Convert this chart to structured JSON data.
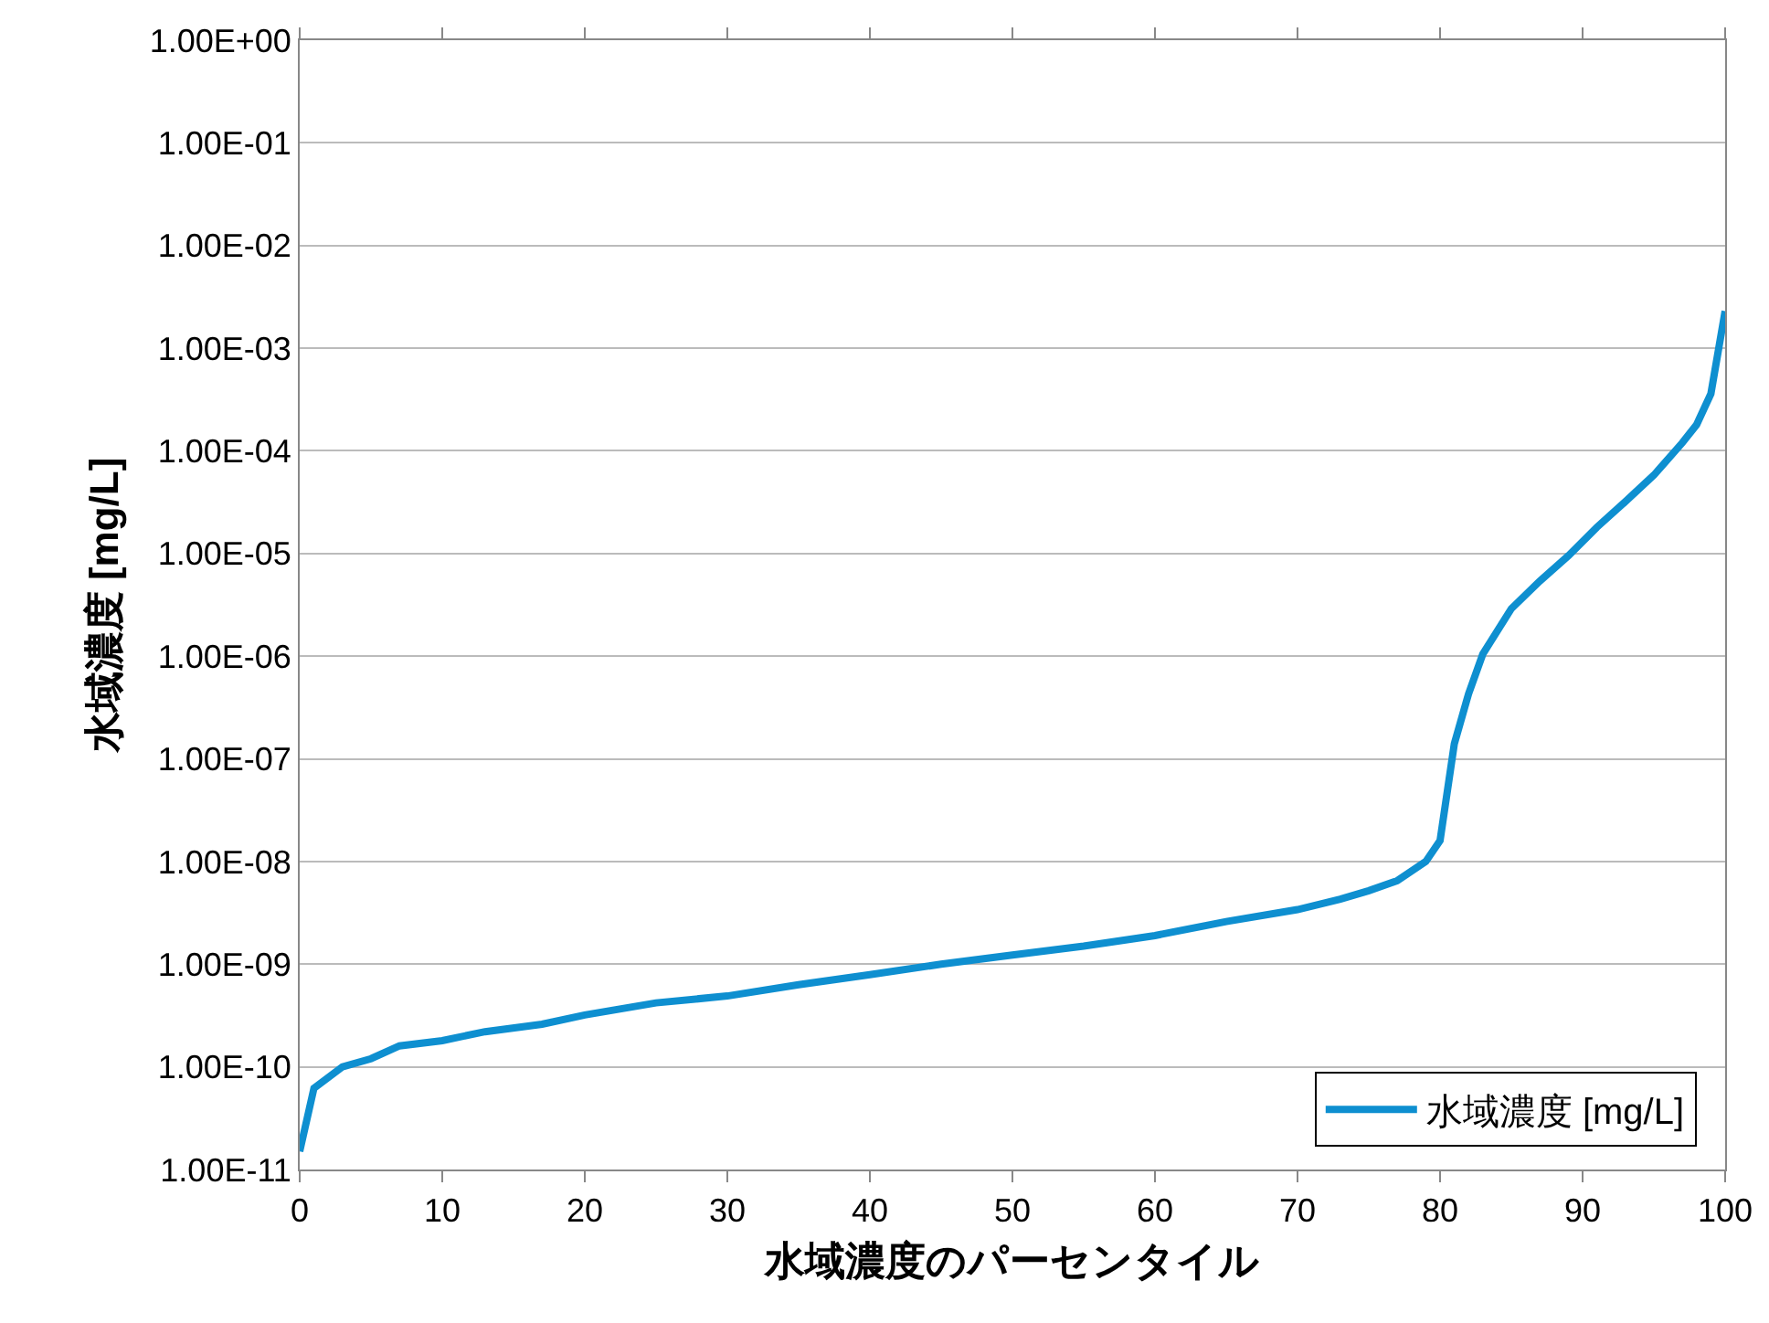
{
  "chart_data": {
    "type": "line",
    "xlabel": "水域濃度のパーセンタイル",
    "ylabel": "水域濃度 [mg/L]",
    "x": [
      0,
      1,
      3,
      5,
      7,
      10,
      13,
      17,
      20,
      25,
      30,
      35,
      40,
      45,
      50,
      55,
      60,
      65,
      70,
      73,
      75,
      77,
      79,
      80,
      81,
      82,
      83,
      85,
      87,
      89,
      91,
      93,
      95,
      97,
      98,
      99,
      100
    ],
    "series": [
      {
        "name": "水域濃度 [mg/L]",
        "color": "#0e8fd0",
        "values": [
          1.5e-11,
          6.2e-11,
          1e-10,
          1.2e-10,
          1.6e-10,
          1.8e-10,
          2.2e-10,
          2.6e-10,
          3.2e-10,
          4.2e-10,
          4.9e-10,
          6.3e-10,
          7.9e-10,
          1e-09,
          1.23e-09,
          1.5e-09,
          1.9e-09,
          2.6e-09,
          3.4e-09,
          4.3e-09,
          5.2e-09,
          6.5e-09,
          1e-08,
          1.6e-08,
          1.4e-07,
          4.3e-07,
          1.05e-06,
          2.9e-06,
          5.4e-06,
          9.5e-06,
          1.8e-05,
          3.2e-05,
          5.8e-05,
          0.00012,
          0.00018,
          0.00036,
          0.0023
        ]
      }
    ],
    "xlim": [
      0,
      100
    ],
    "xticks": [
      0,
      10,
      20,
      30,
      40,
      50,
      60,
      70,
      80,
      90,
      100
    ],
    "ylim": [
      1e-11,
      1
    ],
    "yticks": [
      {
        "value": 1e-11,
        "label": "1.00E-11"
      },
      {
        "value": 1e-10,
        "label": "1.00E-10"
      },
      {
        "value": 1e-09,
        "label": "1.00E-09"
      },
      {
        "value": 1e-08,
        "label": "1.00E-08"
      },
      {
        "value": 1e-07,
        "label": "1.00E-07"
      },
      {
        "value": 1e-06,
        "label": "1.00E-06"
      },
      {
        "value": 1e-05,
        "label": "1.00E-05"
      },
      {
        "value": 0.0001,
        "label": "1.00E-04"
      },
      {
        "value": 0.001,
        "label": "1.00E-03"
      },
      {
        "value": 0.01,
        "label": "1.00E-02"
      },
      {
        "value": 0.1,
        "label": "1.00E-01"
      },
      {
        "value": 1,
        "label": "1.00E+00"
      }
    ],
    "log": true,
    "grid": "y",
    "legend": "bottom right"
  }
}
